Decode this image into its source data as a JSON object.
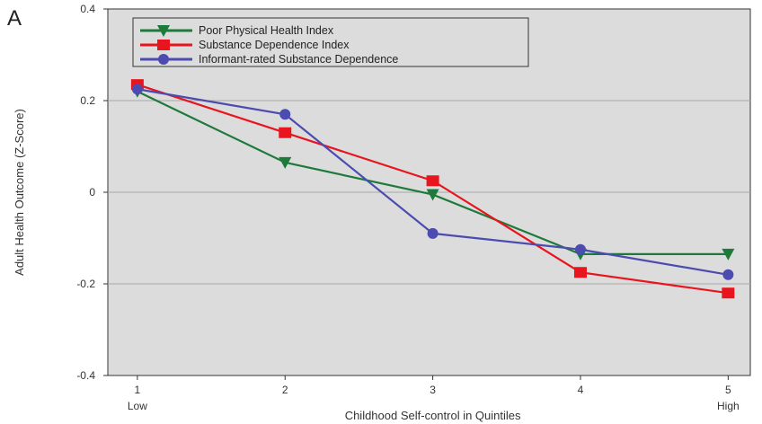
{
  "chart_data": {
    "type": "line",
    "panel_label": "A",
    "title": "",
    "xlabel": "Childhood Self-control in Quintiles",
    "ylabel": "Adult Health Outcome (Z-Score)",
    "x": [
      1,
      2,
      3,
      4,
      5
    ],
    "x_tick_labels": [
      "1",
      "2",
      "3",
      "4",
      "5"
    ],
    "x_end_labels": {
      "low": "Low",
      "high": "High"
    },
    "xlim": [
      0.8,
      5.15
    ],
    "ylim": [
      -0.4,
      0.4
    ],
    "y_ticks": [
      -0.4,
      -0.2,
      0,
      0.2,
      0.4
    ],
    "y_tick_labels": [
      "-0.4",
      "-0.2",
      "0",
      "0.2",
      "0.4"
    ],
    "grid": true,
    "legend_position": "top-left",
    "background": "#dcdcdc",
    "series": [
      {
        "name": "Poor Physical Health Index",
        "color": "#1e7a3a",
        "marker": "triangle-down",
        "values": [
          0.22,
          0.065,
          -0.005,
          -0.135,
          -0.135
        ]
      },
      {
        "name": "Substance Dependence Index",
        "color": "#e8141e",
        "marker": "square",
        "values": [
          0.235,
          0.13,
          0.025,
          -0.175,
          -0.22
        ]
      },
      {
        "name": "Informant-rated Substance Dependence",
        "color": "#4b4bb0",
        "marker": "circle",
        "values": [
          0.225,
          0.17,
          -0.09,
          -0.125,
          -0.18
        ]
      }
    ]
  }
}
